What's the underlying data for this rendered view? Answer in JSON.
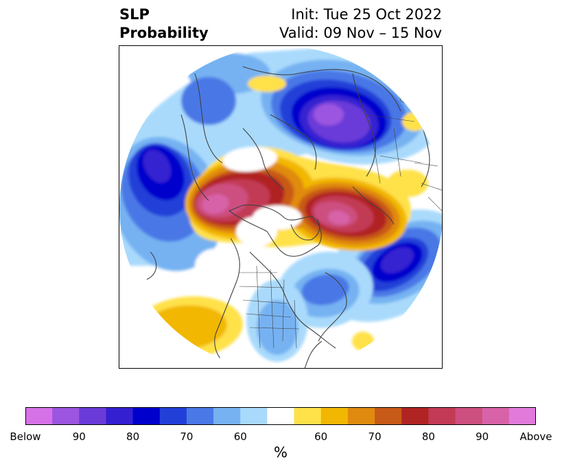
{
  "header": {
    "title_line1": "SLP",
    "title_line2": "Probability",
    "init": "Init: Tue 25 Oct 2022",
    "valid": "Valid: 09 Nov – 15 Nov"
  },
  "colorbar": {
    "unit": "%",
    "colors": [
      "#d672e8",
      "#9b55e0",
      "#6a3bd8",
      "#3420d0",
      "#0000cc",
      "#2240d8",
      "#4a78e6",
      "#76b2f2",
      "#a9dafc",
      "#ffffff",
      "#ffe14a",
      "#f2b700",
      "#e08b10",
      "#c85a18",
      "#b02424",
      "#c23a55",
      "#cc4f80",
      "#d762a8",
      "#e27adc"
    ],
    "ticks": [
      "Below",
      "90",
      "80",
      "70",
      "60",
      "60",
      "70",
      "80",
      "90",
      "Above"
    ]
  },
  "map": {
    "projection": "north polar stereographic",
    "palette": {
      "white": "#ffffff",
      "b60": "#a9dafc",
      "b65": "#76b2f2",
      "b70": "#4a78e6",
      "b75": "#2240d8",
      "b80": "#0000cc",
      "b85": "#3420d0",
      "b90": "#6a3bd8",
      "b95": "#9b55e0",
      "a60": "#ffe14a",
      "a65": "#f2b700",
      "a70": "#e08b10",
      "a75": "#c85a18",
      "a80": "#b02424",
      "a85": "#c23a55",
      "a90": "#cc4f80",
      "a95": "#d762a8",
      "coast": "#404040"
    }
  }
}
